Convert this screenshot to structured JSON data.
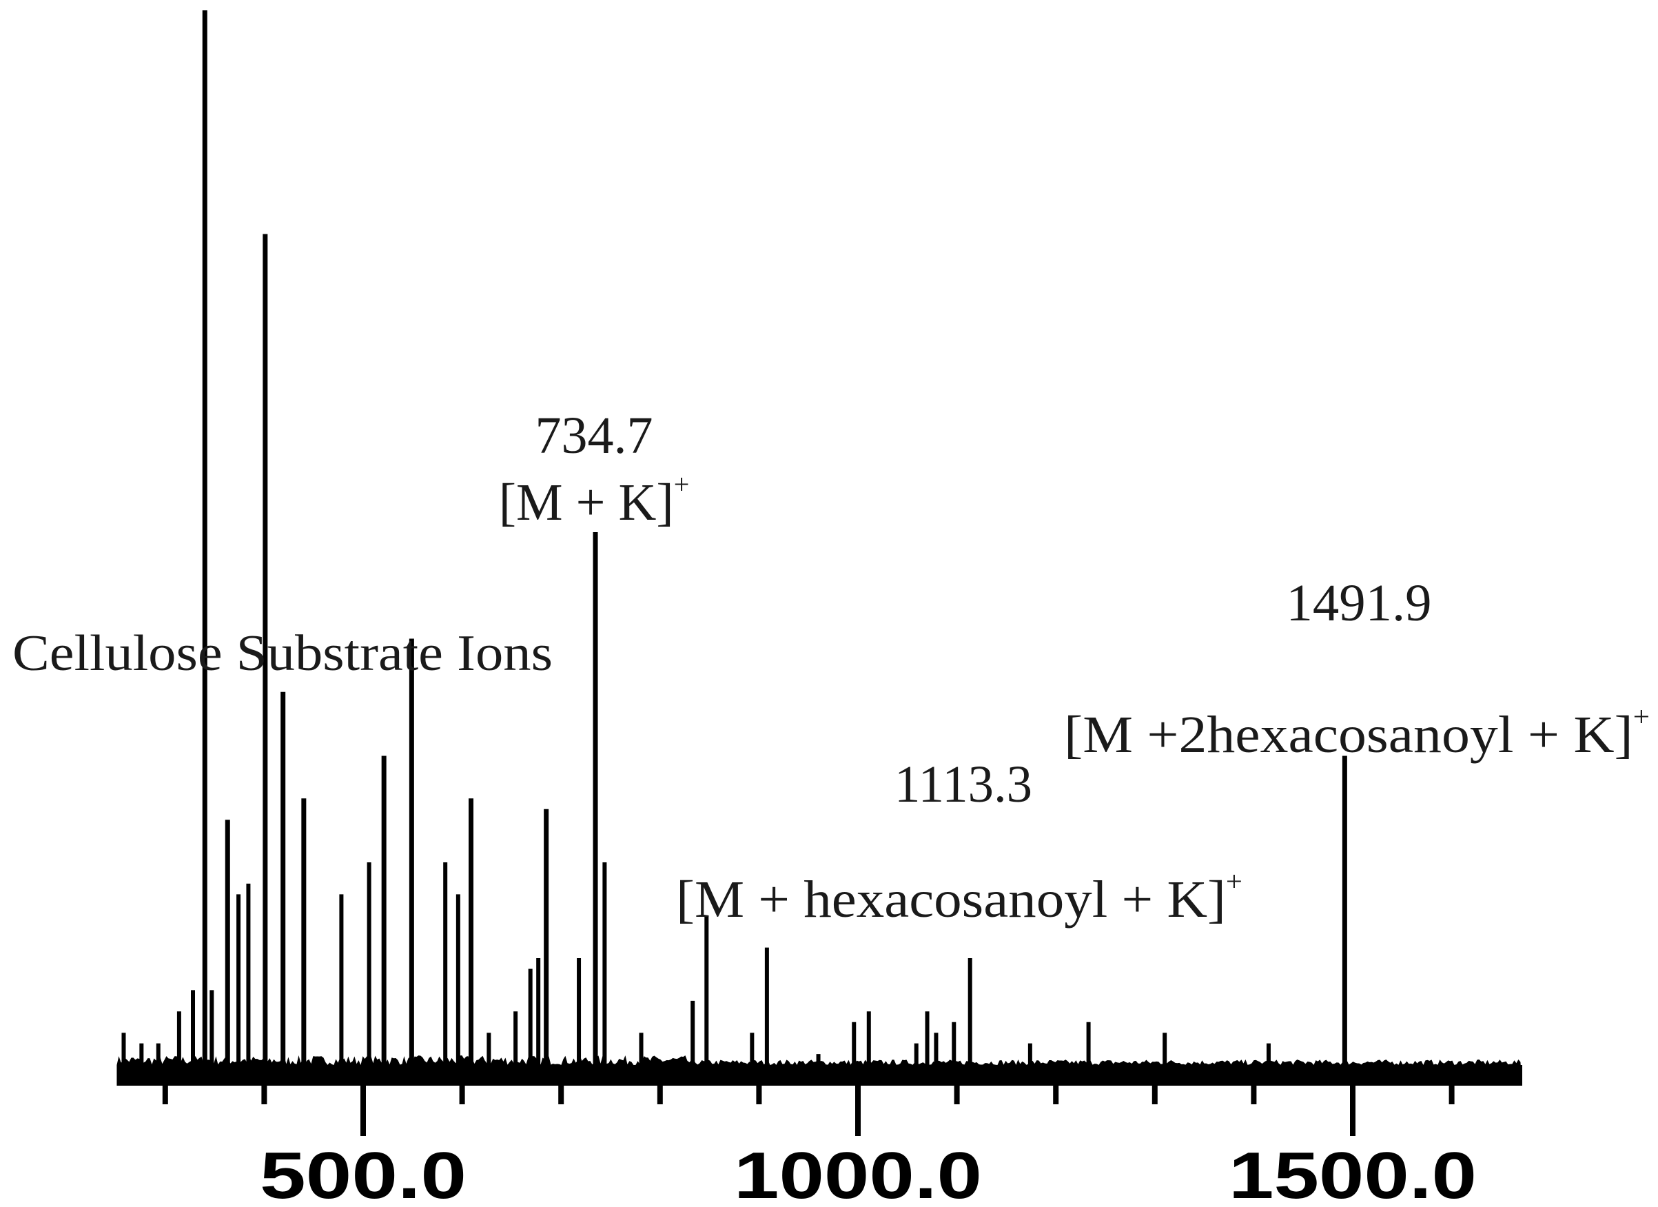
{
  "chart_data": {
    "type": "bar",
    "subtype": "mass-spectrum-stick",
    "title": "",
    "xlabel": "",
    "ylabel": "",
    "xlim": [
      251,
      1671
    ],
    "ylim": [
      0,
      100
    ],
    "grid": false,
    "legend": null,
    "x_major_ticks": [
      500.0,
      1000.0,
      1500.0
    ],
    "x_major_tick_labels": [
      "500.0",
      "1000.0",
      "1500.0"
    ],
    "x_minor_ticks": [
      300,
      400,
      600,
      700,
      800,
      900,
      1100,
      1200,
      1300,
      1400,
      1600
    ],
    "y_axis_visible": false,
    "annotations": [
      {
        "id": "cellulose",
        "text": "Cellulose Substrate Ions",
        "anchor_mz": 450,
        "kind": "region-label"
      },
      {
        "id": "p734",
        "mz_label": "734.7",
        "ion": "[M + K]",
        "charge": "+",
        "mz": 734.7
      },
      {
        "id": "p1113",
        "mz_label": "1113.3",
        "ion": "[M + hexacosanoyl + K]",
        "charge": "+",
        "mz": 1113.3
      },
      {
        "id": "p1491",
        "mz_label": "1491.9",
        "ion": "[M +2hexacosanoyl + K]",
        "charge": "+",
        "mz": 1491.9
      }
    ],
    "series": [
      {
        "name": "spectrum",
        "x": [
          258,
          276,
          293,
          314,
          328,
          340,
          347,
          363,
          374,
          384,
          401,
          419,
          440,
          478,
          506,
          521,
          549,
          583,
          596,
          609,
          627,
          654,
          669,
          677,
          685,
          718,
          734.7,
          744,
          781,
          833,
          847,
          893,
          908,
          960,
          996,
          1011,
          1059,
          1070,
          1079,
          1097,
          1113.3,
          1174,
          1233,
          1310,
          1415,
          1491.9
        ],
        "values": [
          4,
          3,
          3,
          6,
          8,
          100,
          8,
          24,
          17,
          18,
          79,
          36,
          26,
          17,
          20,
          30,
          41,
          20,
          17,
          26,
          4,
          6,
          10,
          11,
          25,
          11,
          51,
          20,
          4,
          7,
          15,
          4,
          12,
          2,
          5,
          6,
          3,
          6,
          4,
          5,
          11,
          3,
          5,
          4,
          3,
          30
        ]
      }
    ]
  },
  "labels": {
    "region": "Cellulose Substrate Ions",
    "p734_mz": "734.7",
    "p734_ion": "[M + K]",
    "p734_charge": "+",
    "p1113_mz": "1113.3",
    "p1113_ion": "[M + hexacosanoyl + K]",
    "p1113_charge": "+",
    "p1491_mz": "1491.9",
    "p1491_ion": "[M +2hexacosanoyl + K]",
    "p1491_charge": "+",
    "tick_500": "500.0",
    "tick_1000": "1000.0",
    "tick_1500": "1500.0"
  },
  "style": {
    "ink": "#000000",
    "text": "#1a1a1a",
    "background": "#ffffff"
  }
}
